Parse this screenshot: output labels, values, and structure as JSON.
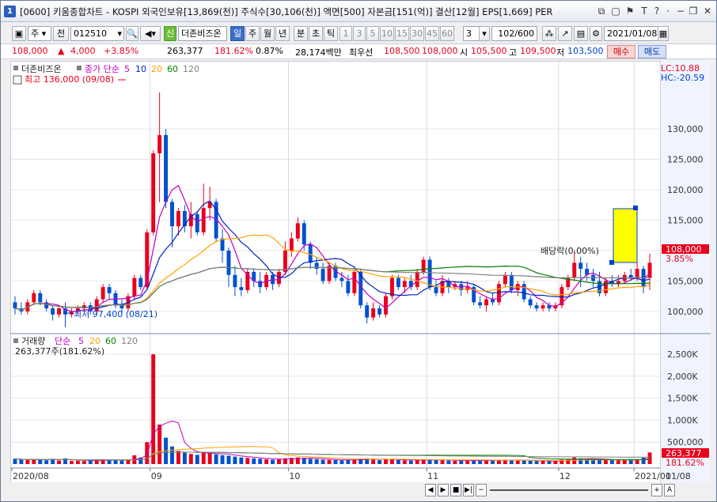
{
  "titlebar": {
    "number": "1",
    "title": "[0600] 키움종합차트 - KOSPI 외국인보유[13,869(천)] 주식수[30,106(천)] 액면[500] 자본금[151(억)] 결산[12월] EPS[1,669] PER"
  },
  "toolbar": {
    "period_select": "주",
    "prev_label": "전",
    "code": "012510",
    "stock_name": "더존비즈온",
    "name_badge": "신",
    "periods": [
      "일",
      "주",
      "월",
      "년",
      "분",
      "초",
      "틱"
    ],
    "intervals": [
      "1",
      "3",
      "5",
      "10",
      "15",
      "30",
      "45",
      "60"
    ],
    "interval_value": "3",
    "count": "102",
    "count_total": "/600",
    "date": "2021/01/08"
  },
  "quote": {
    "price": "108,000",
    "change": "4,000",
    "change_rate": "+3.85%",
    "volume": "263,377",
    "volume_rate": "181.62%",
    "turnover": "0.87%",
    "amount": "28,174백만",
    "best_label": "최우선",
    "ask": "108,500",
    "bid": "108,000",
    "open_label": "시",
    "open": "105,500",
    "high_label": "고",
    "high": "109,500",
    "low_label": "저",
    "low": "103,500",
    "buy": "매수",
    "sell": "매도"
  },
  "price_panel": {
    "name": "더존비즈온",
    "ma_label": "종가 단순",
    "ma_periods": [
      "5",
      "10",
      "20",
      "60",
      "120"
    ],
    "ma_colors": [
      "#c000c0",
      "#0020c0",
      "#ffa000",
      "#008000",
      "#808080"
    ],
    "high_note": "최고 136,000 (09/08)",
    "low_note": "최저 97,400 (08/21)",
    "dividend_note": "배당락(0.00%)",
    "lc": "LC:10.88",
    "hc": "HC:-20.59",
    "y_ticks": [
      "130,000",
      "125,000",
      "120,000",
      "115,000",
      "110,000",
      "105,000",
      "100,000"
    ],
    "last_price": "108,000",
    "last_rate": "3.85%"
  },
  "volume_panel": {
    "label": "거래량",
    "ma_label": "단순",
    "ma_periods": [
      "5",
      "20",
      "60",
      "120"
    ],
    "current": "263,377주(181.62%)",
    "y_ticks": [
      "2,500K",
      "2,000K",
      "1,500K",
      "1,000K",
      "500,000"
    ],
    "last_volume": "263,377",
    "last_rate": "181.62%"
  },
  "x_axis": {
    "labels": [
      "2020/08",
      "09",
      "10",
      "11",
      "12",
      "2021/01",
      "01/08"
    ]
  },
  "scrollbar": {
    "controls": [
      "◀",
      "▶",
      "■",
      "▶|",
      "−",
      "+",
      "A"
    ]
  },
  "colors": {
    "up": "#e8001c",
    "down": "#0050d0",
    "accent": "#2b5db8"
  },
  "chart_data": {
    "type": "candlestick",
    "title": "",
    "ylim": [
      97000,
      136000
    ],
    "volume_ylim": [
      0,
      2700000
    ],
    "candles": [
      {
        "o": 101500,
        "c": 100500,
        "h": 102500,
        "l": 99500,
        "v": 120000
      },
      {
        "o": 100500,
        "c": 100000,
        "h": 101500,
        "l": 99500,
        "v": 100000
      },
      {
        "o": 100000,
        "c": 101500,
        "h": 102000,
        "l": 99500,
        "v": 90000
      },
      {
        "o": 101500,
        "c": 103000,
        "h": 103500,
        "l": 101000,
        "v": 110000
      },
      {
        "o": 103000,
        "c": 101500,
        "h": 103500,
        "l": 101000,
        "v": 95000
      },
      {
        "o": 101500,
        "c": 100500,
        "h": 102000,
        "l": 100000,
        "v": 85000
      },
      {
        "o": 100500,
        "c": 99500,
        "h": 101000,
        "l": 98500,
        "v": 120000
      },
      {
        "o": 99500,
        "c": 100500,
        "h": 101000,
        "l": 99000,
        "v": 80000
      },
      {
        "o": 100500,
        "c": 99500,
        "h": 101500,
        "l": 97400,
        "v": 130000
      },
      {
        "o": 99500,
        "c": 100000,
        "h": 100500,
        "l": 99000,
        "v": 70000
      },
      {
        "o": 100000,
        "c": 100500,
        "h": 101000,
        "l": 99500,
        "v": 75000
      },
      {
        "o": 100500,
        "c": 101000,
        "h": 101500,
        "l": 100000,
        "v": 70000
      },
      {
        "o": 101000,
        "c": 100000,
        "h": 101500,
        "l": 99500,
        "v": 80000
      },
      {
        "o": 100000,
        "c": 102000,
        "h": 102500,
        "l": 99500,
        "v": 90000
      },
      {
        "o": 102000,
        "c": 104000,
        "h": 104500,
        "l": 101500,
        "v": 110000
      },
      {
        "o": 104000,
        "c": 103000,
        "h": 104500,
        "l": 102000,
        "v": 85000
      },
      {
        "o": 103000,
        "c": 101000,
        "h": 103500,
        "l": 100500,
        "v": 90000
      },
      {
        "o": 101000,
        "c": 100500,
        "h": 102000,
        "l": 99500,
        "v": 80000
      },
      {
        "o": 100500,
        "c": 102500,
        "h": 103000,
        "l": 100000,
        "v": 95000
      },
      {
        "o": 102500,
        "c": 105500,
        "h": 106000,
        "l": 102000,
        "v": 200000
      },
      {
        "o": 105500,
        "c": 104000,
        "h": 106000,
        "l": 103500,
        "v": 150000
      },
      {
        "o": 104000,
        "c": 113000,
        "h": 113500,
        "l": 103500,
        "v": 500000
      },
      {
        "o": 113000,
        "c": 126000,
        "h": 126500,
        "l": 112500,
        "v": 2500000
      },
      {
        "o": 126000,
        "c": 129000,
        "h": 136000,
        "l": 118000,
        "v": 900000
      },
      {
        "o": 129000,
        "c": 118000,
        "h": 130000,
        "l": 117000,
        "v": 600000
      },
      {
        "o": 118000,
        "c": 114000,
        "h": 118500,
        "l": 110500,
        "v": 400000
      },
      {
        "o": 114000,
        "c": 116500,
        "h": 117000,
        "l": 112500,
        "v": 300000
      },
      {
        "o": 116500,
        "c": 114000,
        "h": 117500,
        "l": 113000,
        "v": 260000
      },
      {
        "o": 114000,
        "c": 116000,
        "h": 118000,
        "l": 112000,
        "v": 230000
      },
      {
        "o": 116000,
        "c": 113000,
        "h": 116500,
        "l": 112500,
        "v": 210000
      },
      {
        "o": 113000,
        "c": 117000,
        "h": 121000,
        "l": 112500,
        "v": 280000
      },
      {
        "o": 117000,
        "c": 118000,
        "h": 120500,
        "l": 115000,
        "v": 250000
      },
      {
        "o": 118000,
        "c": 112000,
        "h": 118500,
        "l": 111500,
        "v": 220000
      },
      {
        "o": 112000,
        "c": 110000,
        "h": 113500,
        "l": 108000,
        "v": 200000
      },
      {
        "o": 110000,
        "c": 106000,
        "h": 110500,
        "l": 104000,
        "v": 190000
      },
      {
        "o": 106000,
        "c": 104000,
        "h": 107500,
        "l": 102500,
        "v": 170000
      },
      {
        "o": 104000,
        "c": 103500,
        "h": 105500,
        "l": 102500,
        "v": 150000
      },
      {
        "o": 103500,
        "c": 106500,
        "h": 107000,
        "l": 103000,
        "v": 140000
      },
      {
        "o": 106500,
        "c": 105000,
        "h": 107000,
        "l": 104000,
        "v": 130000
      },
      {
        "o": 105000,
        "c": 104000,
        "h": 106500,
        "l": 103000,
        "v": 120000
      },
      {
        "o": 104000,
        "c": 106000,
        "h": 106500,
        "l": 103500,
        "v": 110000
      },
      {
        "o": 106000,
        "c": 104500,
        "h": 106500,
        "l": 103500,
        "v": 100000
      },
      {
        "o": 104500,
        "c": 106500,
        "h": 107000,
        "l": 104000,
        "v": 105000
      },
      {
        "o": 106500,
        "c": 110000,
        "h": 111500,
        "l": 106000,
        "v": 130000
      },
      {
        "o": 110000,
        "c": 112000,
        "h": 113000,
        "l": 109000,
        "v": 140000
      },
      {
        "o": 112000,
        "c": 114500,
        "h": 115500,
        "l": 111500,
        "v": 150000
      },
      {
        "o": 114500,
        "c": 111000,
        "h": 115000,
        "l": 110000,
        "v": 140000
      },
      {
        "o": 111000,
        "c": 108000,
        "h": 111500,
        "l": 107000,
        "v": 120000
      },
      {
        "o": 108000,
        "c": 107000,
        "h": 109000,
        "l": 106000,
        "v": 110000
      },
      {
        "o": 107000,
        "c": 105000,
        "h": 108000,
        "l": 104500,
        "v": 100000
      },
      {
        "o": 105000,
        "c": 107500,
        "h": 108000,
        "l": 104500,
        "v": 95000
      },
      {
        "o": 107500,
        "c": 105500,
        "h": 108000,
        "l": 105000,
        "v": 90000
      },
      {
        "o": 105500,
        "c": 105000,
        "h": 106500,
        "l": 104000,
        "v": 85000
      },
      {
        "o": 105000,
        "c": 103000,
        "h": 106000,
        "l": 102500,
        "v": 95000
      },
      {
        "o": 103000,
        "c": 106500,
        "h": 107000,
        "l": 102500,
        "v": 100000
      },
      {
        "o": 106500,
        "c": 101000,
        "h": 107000,
        "l": 100500,
        "v": 120000
      },
      {
        "o": 101000,
        "c": 99000,
        "h": 101500,
        "l": 98000,
        "v": 130000
      },
      {
        "o": 99000,
        "c": 100500,
        "h": 101500,
        "l": 98500,
        "v": 110000
      },
      {
        "o": 100500,
        "c": 99500,
        "h": 101000,
        "l": 99000,
        "v": 90000
      },
      {
        "o": 99500,
        "c": 102500,
        "h": 103000,
        "l": 99000,
        "v": 100000
      },
      {
        "o": 102500,
        "c": 105500,
        "h": 106000,
        "l": 102000,
        "v": 110000
      },
      {
        "o": 105500,
        "c": 104000,
        "h": 106000,
        "l": 103500,
        "v": 90000
      },
      {
        "o": 104000,
        "c": 105000,
        "h": 105500,
        "l": 103000,
        "v": 85000
      },
      {
        "o": 105000,
        "c": 104000,
        "h": 106000,
        "l": 103500,
        "v": 80000
      },
      {
        "o": 104000,
        "c": 106500,
        "h": 107000,
        "l": 103500,
        "v": 95000
      },
      {
        "o": 106500,
        "c": 108500,
        "h": 109000,
        "l": 106000,
        "v": 110000
      },
      {
        "o": 108500,
        "c": 104000,
        "h": 109000,
        "l": 103500,
        "v": 100000
      },
      {
        "o": 104000,
        "c": 103000,
        "h": 105000,
        "l": 102500,
        "v": 90000
      },
      {
        "o": 103000,
        "c": 105000,
        "h": 106000,
        "l": 102500,
        "v": 85000
      },
      {
        "o": 105000,
        "c": 104000,
        "h": 105500,
        "l": 103000,
        "v": 80000
      },
      {
        "o": 104000,
        "c": 104500,
        "h": 105000,
        "l": 103500,
        "v": 75000
      },
      {
        "o": 104500,
        "c": 103500,
        "h": 105000,
        "l": 102500,
        "v": 80000
      },
      {
        "o": 103500,
        "c": 104000,
        "h": 105000,
        "l": 103000,
        "v": 75000
      },
      {
        "o": 104000,
        "c": 101500,
        "h": 104500,
        "l": 101000,
        "v": 90000
      },
      {
        "o": 101500,
        "c": 101000,
        "h": 102500,
        "l": 100500,
        "v": 85000
      },
      {
        "o": 101000,
        "c": 102000,
        "h": 102500,
        "l": 100000,
        "v": 80000
      },
      {
        "o": 102000,
        "c": 101500,
        "h": 103000,
        "l": 101000,
        "v": 75000
      },
      {
        "o": 101500,
        "c": 104500,
        "h": 105000,
        "l": 101000,
        "v": 95000
      },
      {
        "o": 104500,
        "c": 106000,
        "h": 106500,
        "l": 104000,
        "v": 100000
      },
      {
        "o": 106000,
        "c": 103500,
        "h": 106500,
        "l": 103000,
        "v": 90000
      },
      {
        "o": 103500,
        "c": 104500,
        "h": 105000,
        "l": 102500,
        "v": 85000
      },
      {
        "o": 104500,
        "c": 102000,
        "h": 105000,
        "l": 101500,
        "v": 80000
      },
      {
        "o": 102000,
        "c": 101000,
        "h": 102500,
        "l": 100500,
        "v": 75000
      },
      {
        "o": 101000,
        "c": 100500,
        "h": 101500,
        "l": 100000,
        "v": 70000
      },
      {
        "o": 100500,
        "c": 101000,
        "h": 101500,
        "l": 100000,
        "v": 70000
      },
      {
        "o": 101000,
        "c": 100500,
        "h": 101500,
        "l": 100000,
        "v": 70000
      },
      {
        "o": 100500,
        "c": 101000,
        "h": 101500,
        "l": 100000,
        "v": 65000
      },
      {
        "o": 101000,
        "c": 104000,
        "h": 104500,
        "l": 100500,
        "v": 100000
      },
      {
        "o": 104000,
        "c": 105500,
        "h": 106000,
        "l": 103500,
        "v": 110000
      },
      {
        "o": 105500,
        "c": 108000,
        "h": 110000,
        "l": 105000,
        "v": 150000
      },
      {
        "o": 108000,
        "c": 107000,
        "h": 109000,
        "l": 104000,
        "v": 130000
      },
      {
        "o": 107000,
        "c": 106000,
        "h": 108000,
        "l": 105000,
        "v": 120000
      },
      {
        "o": 106000,
        "c": 105000,
        "h": 107000,
        "l": 104000,
        "v": 110000
      },
      {
        "o": 105000,
        "c": 103000,
        "h": 106500,
        "l": 102500,
        "v": 100000
      },
      {
        "o": 103000,
        "c": 105000,
        "h": 105500,
        "l": 102500,
        "v": 95000
      },
      {
        "o": 105000,
        "c": 104500,
        "h": 106000,
        "l": 104000,
        "v": 90000
      },
      {
        "o": 104500,
        "c": 105000,
        "h": 106000,
        "l": 104000,
        "v": 85000
      },
      {
        "o": 105000,
        "c": 106000,
        "h": 106500,
        "l": 104500,
        "v": 90000
      },
      {
        "o": 106000,
        "c": 105500,
        "h": 107000,
        "l": 105000,
        "v": 95000
      },
      {
        "o": 105500,
        "c": 107000,
        "h": 108000,
        "l": 105000,
        "v": 110000
      },
      {
        "o": 107000,
        "c": 104000,
        "h": 107500,
        "l": 103000,
        "v": 145000
      },
      {
        "o": 105500,
        "c": 108000,
        "h": 109500,
        "l": 103500,
        "v": 263377
      }
    ]
  }
}
